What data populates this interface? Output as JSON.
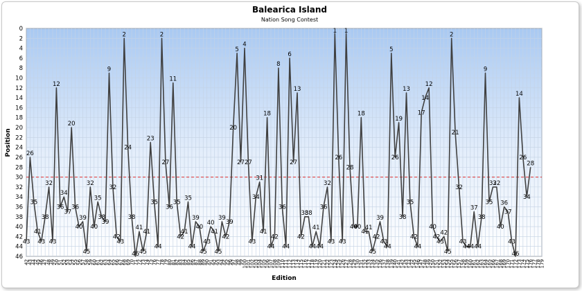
{
  "chart_data": {
    "type": "line",
    "title": "Balearica Island",
    "subtitle": "Nation Song Contest",
    "xlabel": "Edition",
    "ylabel": "Position",
    "ylim": [
      0,
      46
    ],
    "y_reversed": true,
    "y_ticks": [
      0,
      2,
      4,
      6,
      8,
      10,
      12,
      14,
      16,
      18,
      20,
      22,
      24,
      26,
      28,
      30,
      32,
      34,
      36,
      38,
      40,
      42,
      44,
      46
    ],
    "reference_line": {
      "value": 30,
      "color": "#e03030",
      "style": "dashed"
    },
    "grid": true,
    "x_ticks": [
      "42",
      "43",
      "44",
      "45",
      "46",
      "47",
      "48",
      "49",
      "50",
      "51",
      "52",
      "53",
      "54",
      "55",
      "56",
      "57",
      "58",
      "59",
      "60",
      "61",
      "62",
      "63",
      "64",
      "65",
      "66",
      "67",
      "68",
      "69",
      "70",
      "71",
      "72",
      "73",
      "74",
      "75",
      "76",
      "77",
      "78",
      "79",
      "80",
      "81",
      "82",
      "83",
      "84",
      "85",
      "86",
      "87",
      "88",
      "89",
      "90",
      "91",
      "92",
      "93",
      "94",
      "95",
      "96",
      "97",
      "98",
      "99",
      "100",
      "101",
      "102",
      "103",
      "104",
      "105",
      "106",
      "107",
      "108",
      "109",
      "110",
      "111",
      "112",
      "113",
      "114",
      "115",
      "116",
      "117",
      "118",
      "119",
      "120",
      "121",
      "122",
      "123",
      "124",
      "125",
      "126",
      "127",
      "128",
      "129",
      "130",
      "131",
      "132",
      "133",
      "134",
      "135",
      "136",
      "137",
      "138",
      "139",
      "140",
      "141",
      "142",
      "143",
      "144",
      "145",
      "146",
      "147",
      "148",
      "149",
      "150",
      "151",
      "152",
      "153",
      "154",
      "155",
      "156",
      "157",
      "158",
      "159",
      "160",
      "161",
      "162",
      "163",
      "164",
      "165",
      "166",
      "167",
      "168",
      "169",
      "170",
      "171",
      "172",
      "173",
      "174",
      "175",
      "176",
      "177",
      "178",
      "179"
    ],
    "series": [
      {
        "color": "#404040",
        "points": [
          {
            "x": "42",
            "y": 43
          },
          {
            "x": "43",
            "y": 26
          },
          {
            "x": "44",
            "y": 35
          },
          {
            "x": "45",
            "y": 41
          },
          {
            "x": "46",
            "y": 43
          },
          {
            "x": "47",
            "y": 38
          },
          {
            "x": "48",
            "y": 32
          },
          {
            "x": "49",
            "y": 43
          },
          {
            "x": "50",
            "y": 12
          },
          {
            "x": "51",
            "y": 36
          },
          {
            "x": "52",
            "y": 34
          },
          {
            "x": "53",
            "y": 37
          },
          {
            "x": "54",
            "y": 20
          },
          {
            "x": "55",
            "y": 36
          },
          {
            "x": "56",
            "y": 40
          },
          {
            "x": "57",
            "y": 39
          },
          {
            "x": "58",
            "y": 45
          },
          {
            "x": "59",
            "y": 32
          },
          {
            "x": "60",
            "y": 40
          },
          {
            "x": "61",
            "y": 35
          },
          {
            "x": "62",
            "y": 38
          },
          {
            "x": "63",
            "y": 39
          },
          {
            "x": "64",
            "y": 9
          },
          {
            "x": "65",
            "y": 32
          },
          {
            "x": "66",
            "y": 42
          },
          {
            "x": "67",
            "y": 43
          },
          {
            "x": "68",
            "y": 2
          },
          {
            "x": "69",
            "y": 24
          },
          {
            "x": "70",
            "y": 38
          },
          {
            "x": "71",
            "y": 46
          },
          {
            "x": "72",
            "y": 41
          },
          {
            "x": "73",
            "y": 45
          },
          {
            "x": "74",
            "y": 41
          },
          {
            "x": "75",
            "y": 23
          },
          {
            "x": "76",
            "y": 35
          },
          {
            "x": "77",
            "y": 44
          },
          {
            "x": "78",
            "y": 2
          },
          {
            "x": "79",
            "y": 27
          },
          {
            "x": "80",
            "y": 36
          },
          {
            "x": "81",
            "y": 11
          },
          {
            "x": "82",
            "y": 35
          },
          {
            "x": "83",
            "y": 42
          },
          {
            "x": "84",
            "y": 41
          },
          {
            "x": "85",
            "y": 35
          },
          {
            "x": "86",
            "y": 44
          },
          {
            "x": "87",
            "y": 39
          },
          {
            "x": "88",
            "y": 40
          },
          {
            "x": "89",
            "y": 45
          },
          {
            "x": "90",
            "y": 43
          },
          {
            "x": "91",
            "y": 40
          },
          {
            "x": "92",
            "y": 41
          },
          {
            "x": "93",
            "y": 45
          },
          {
            "x": "94",
            "y": 39
          },
          {
            "x": "95",
            "y": 42
          },
          {
            "x": "96",
            "y": 39
          },
          {
            "x": "97",
            "y": 20
          },
          {
            "x": "98",
            "y": 5
          },
          {
            "x": "99",
            "y": 27
          },
          {
            "x": "100",
            "y": 4
          },
          {
            "x": "101",
            "y": 27
          },
          {
            "x": "102",
            "y": 43
          },
          {
            "x": "103",
            "y": 34
          },
          {
            "x": "104",
            "y": 31
          },
          {
            "x": "105",
            "y": 41
          },
          {
            "x": "106",
            "y": 18
          },
          {
            "x": "107",
            "y": 44
          },
          {
            "x": "108",
            "y": 42
          },
          {
            "x": "109",
            "y": 8
          },
          {
            "x": "110",
            "y": 36
          },
          {
            "x": "111",
            "y": 44
          },
          {
            "x": "112",
            "y": 6
          },
          {
            "x": "113",
            "y": 27
          },
          {
            "x": "114",
            "y": 13
          },
          {
            "x": "115",
            "y": 42
          },
          {
            "x": "116",
            "y": 38
          },
          {
            "x": "117",
            "y": 38
          },
          {
            "x": "118",
            "y": 44
          },
          {
            "x": "119",
            "y": 41
          },
          {
            "x": "120",
            "y": 44
          },
          {
            "x": "121",
            "y": 36
          },
          {
            "x": "122",
            "y": 32
          },
          {
            "x": "123",
            "y": 43
          },
          {
            "x": "124",
            "y": 1
          },
          {
            "x": "125",
            "y": 26
          },
          {
            "x": "126",
            "y": 43
          },
          {
            "x": "127",
            "y": 1
          },
          {
            "x": "128",
            "y": 28
          },
          {
            "x": "129",
            "y": 40
          },
          {
            "x": "130",
            "y": 40
          },
          {
            "x": "131",
            "y": 18
          },
          {
            "x": "132",
            "y": 41
          },
          {
            "x": "133",
            "y": 41
          },
          {
            "x": "134",
            "y": 45
          },
          {
            "x": "135",
            "y": 42
          },
          {
            "x": "136",
            "y": 39
          },
          {
            "x": "137",
            "y": 43
          },
          {
            "x": "138",
            "y": 44
          },
          {
            "x": "139",
            "y": 5
          },
          {
            "x": "140",
            "y": 26
          },
          {
            "x": "141",
            "y": 19
          },
          {
            "x": "142",
            "y": 38
          },
          {
            "x": "143",
            "y": 13
          },
          {
            "x": "144",
            "y": 35
          },
          {
            "x": "145",
            "y": 42
          },
          {
            "x": "146",
            "y": 44
          },
          {
            "x": "147",
            "y": 17
          },
          {
            "x": "148",
            "y": 14
          },
          {
            "x": "149",
            "y": 12
          },
          {
            "x": "150",
            "y": 40
          },
          {
            "x": "151",
            "y": 42
          },
          {
            "x": "152",
            "y": 43
          },
          {
            "x": "153",
            "y": 42
          },
          {
            "x": "154",
            "y": 45
          },
          {
            "x": "155",
            "y": 2
          },
          {
            "x": "156",
            "y": 21
          },
          {
            "x": "157",
            "y": 32
          },
          {
            "x": "158",
            "y": 43
          },
          {
            "x": "159",
            "y": 44
          },
          {
            "x": "160",
            "y": 44
          },
          {
            "x": "161",
            "y": 37
          },
          {
            "x": "162",
            "y": 44
          },
          {
            "x": "163",
            "y": 38
          },
          {
            "x": "164",
            "y": 9
          },
          {
            "x": "165",
            "y": 35
          },
          {
            "x": "166",
            "y": 32
          },
          {
            "x": "167",
            "y": 32
          },
          {
            "x": "168",
            "y": 40
          },
          {
            "x": "169",
            "y": 36
          },
          {
            "x": "170",
            "y": 37
          },
          {
            "x": "171",
            "y": 43
          },
          {
            "x": "172",
            "y": 46
          },
          {
            "x": "173",
            "y": 14
          },
          {
            "x": "174",
            "y": 26
          },
          {
            "x": "175",
            "y": 34
          },
          {
            "x": "176",
            "y": 28
          }
        ]
      }
    ]
  }
}
